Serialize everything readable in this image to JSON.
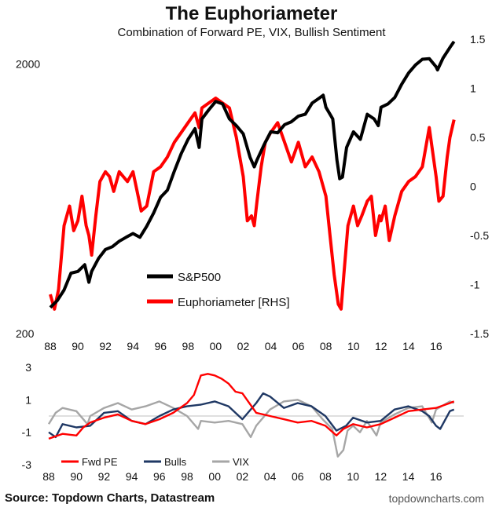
{
  "title": "The Euphoriameter",
  "subtitle": "Combination of Forward PE, VIX, Bullish Sentiment",
  "source": "Source: Topdown Charts, Datastream",
  "watermark": "topdowncharts.com",
  "chart_data": [
    {
      "type": "line",
      "title": "The Euphoriameter",
      "xlim": [
        1988,
        2018
      ],
      "xticks": [
        1988,
        1990,
        1992,
        1994,
        1996,
        1998,
        2000,
        2002,
        2004,
        2006,
        2008,
        2010,
        2012,
        2014,
        2016
      ],
      "xtick_labels": [
        "88",
        "90",
        "92",
        "94",
        "96",
        "98",
        "00",
        "02",
        "04",
        "06",
        "08",
        "10",
        "12",
        "14",
        "16"
      ],
      "y_left": {
        "scale": "log",
        "lim": [
          200,
          2500
        ],
        "ticks": [
          200,
          2000
        ],
        "tick_labels": [
          "200",
          "2000"
        ]
      },
      "y_right": {
        "lim": [
          -1.5,
          1.5
        ],
        "ticks": [
          -1.5,
          -1,
          -0.5,
          0,
          0.5,
          1,
          1.5
        ],
        "tick_labels": [
          "-1.5",
          "-1",
          "-0.5",
          "0",
          "0.5",
          "1",
          "1.5"
        ]
      },
      "legend": [
        "S&P500",
        "Euphoriameter [RHS]"
      ],
      "series": [
        {
          "name": "S&P500",
          "axis": "left",
          "color": "#000000",
          "x": [
            1988,
            1988.5,
            1989,
            1989.5,
            1990,
            1990.5,
            1990.8,
            1991,
            1991.5,
            1992,
            1992.5,
            1993,
            1993.5,
            1994,
            1994.5,
            1995,
            1995.5,
            1996,
            1996.5,
            1997,
            1997.5,
            1998,
            1998.5,
            1998.8,
            1999,
            1999.5,
            2000,
            2000.5,
            2001,
            2001.5,
            2002,
            2002.5,
            2002.8,
            2003,
            2003.5,
            2004,
            2004.5,
            2005,
            2005.5,
            2006,
            2006.5,
            2007,
            2007.5,
            2007.8,
            2008,
            2008.5,
            2008.8,
            2009,
            2009.2,
            2009.5,
            2010,
            2010.5,
            2011,
            2011.5,
            2011.8,
            2012,
            2012.5,
            2013,
            2013.5,
            2014,
            2014.5,
            2015,
            2015.5,
            2016,
            2016.1,
            2016.5,
            2017,
            2017.3
          ],
          "values": [
            250,
            265,
            290,
            335,
            340,
            360,
            310,
            340,
            380,
            410,
            420,
            440,
            455,
            470,
            455,
            500,
            560,
            640,
            680,
            800,
            930,
            1050,
            1150,
            980,
            1250,
            1350,
            1450,
            1420,
            1250,
            1180,
            1100,
            900,
            830,
            880,
            1000,
            1120,
            1110,
            1190,
            1220,
            1280,
            1300,
            1430,
            1490,
            1530,
            1380,
            1250,
            880,
            750,
            760,
            980,
            1120,
            1050,
            1300,
            1250,
            1180,
            1380,
            1420,
            1500,
            1680,
            1850,
            1980,
            2080,
            2090,
            1950,
            1900,
            2100,
            2300,
            2420
          ]
        },
        {
          "name": "Euphoriameter [RHS]",
          "axis": "right",
          "color": "#ff0000",
          "x": [
            1988,
            1988.3,
            1988.6,
            1989,
            1989.4,
            1989.7,
            1990,
            1990.3,
            1990.6,
            1990.8,
            1991,
            1991.3,
            1991.6,
            1992,
            1992.3,
            1992.6,
            1993,
            1993.3,
            1993.6,
            1994,
            1994.3,
            1994.6,
            1995,
            1995.5,
            1996,
            1996.5,
            1997,
            1997.5,
            1998,
            1998.5,
            1998.8,
            1999,
            1999.5,
            2000,
            2000.5,
            2001,
            2001.5,
            2002,
            2002.3,
            2002.6,
            2002.8,
            2003,
            2003.3,
            2003.6,
            2004,
            2004.5,
            2005,
            2005.5,
            2006,
            2006.5,
            2007,
            2007.5,
            2008,
            2008.3,
            2008.6,
            2008.9,
            2009.1,
            2009.3,
            2009.6,
            2010,
            2010.3,
            2010.6,
            2011,
            2011.3,
            2011.6,
            2011.9,
            2012,
            2012.3,
            2012.6,
            2013,
            2013.5,
            2014,
            2014.5,
            2015,
            2015.5,
            2015.8,
            2016,
            2016.2,
            2016.5,
            2016.8,
            2017,
            2017.3
          ],
          "values": [
            -1.1,
            -1.25,
            -1.05,
            -0.4,
            -0.2,
            -0.45,
            -0.35,
            -0.1,
            -0.4,
            -0.5,
            -0.7,
            -0.3,
            0.05,
            0.15,
            0.1,
            -0.05,
            0.15,
            0.1,
            0.05,
            0.15,
            -0.05,
            -0.25,
            -0.2,
            0.15,
            0.2,
            0.3,
            0.45,
            0.55,
            0.65,
            0.75,
            0.6,
            0.8,
            0.85,
            0.9,
            0.85,
            0.8,
            0.5,
            0.1,
            -0.35,
            -0.3,
            -0.4,
            -0.15,
            0.2,
            0.45,
            0.55,
            0.65,
            0.45,
            0.25,
            0.45,
            0.2,
            0.3,
            0.15,
            -0.1,
            -0.5,
            -0.9,
            -1.2,
            -1.25,
            -0.9,
            -0.4,
            -0.2,
            -0.4,
            -0.3,
            -0.15,
            -0.1,
            -0.5,
            -0.3,
            -0.35,
            -0.2,
            -0.55,
            -0.3,
            -0.05,
            0.05,
            0.1,
            0.2,
            0.6,
            0.3,
            0.1,
            -0.15,
            -0.1,
            0.3,
            0.5,
            0.68
          ]
        }
      ]
    },
    {
      "type": "line",
      "title": "",
      "xlim": [
        1988,
        2018
      ],
      "xticks": [
        1988,
        1990,
        1992,
        1994,
        1996,
        1998,
        2000,
        2002,
        2004,
        2006,
        2008,
        2010,
        2012,
        2014,
        2016
      ],
      "xtick_labels": [
        "88",
        "90",
        "92",
        "94",
        "96",
        "98",
        "00",
        "02",
        "04",
        "06",
        "08",
        "10",
        "12",
        "14",
        "16"
      ],
      "ylim": [
        -3,
        3
      ],
      "yticks": [
        -3,
        -1,
        1,
        3
      ],
      "ytick_labels": [
        "-3",
        "-1",
        "1",
        "3"
      ],
      "legend": [
        "Fwd PE",
        "Bulls",
        "VIX"
      ],
      "series": [
        {
          "name": "Fwd PE",
          "color": "#ff0000",
          "x": [
            1988,
            1989,
            1990,
            1990.5,
            1991,
            1992,
            1993,
            1994,
            1995,
            1996,
            1997,
            1998,
            1998.5,
            1999,
            1999.5,
            2000,
            2000.5,
            2001,
            2001.5,
            2002,
            2002.5,
            2003,
            2004,
            2005,
            2006,
            2007,
            2008,
            2008.8,
            2009.3,
            2010,
            2011,
            2012,
            2013,
            2014,
            2015,
            2016,
            2017,
            2017.3
          ],
          "values": [
            -1.4,
            -1.1,
            -1.2,
            -0.7,
            -0.4,
            -0.1,
            0.1,
            -0.3,
            -0.5,
            -0.2,
            0.2,
            0.8,
            1.3,
            2.5,
            2.6,
            2.5,
            2.3,
            2.0,
            1.5,
            1.4,
            0.8,
            0.2,
            0.0,
            -0.2,
            -0.4,
            -0.3,
            -0.6,
            -1.2,
            -0.8,
            -0.5,
            -0.7,
            -0.5,
            -0.1,
            0.3,
            0.4,
            0.5,
            0.8,
            0.9
          ]
        },
        {
          "name": "Bulls",
          "color": "#1f3864",
          "x": [
            1988,
            1988.5,
            1989,
            1990,
            1991,
            1991.5,
            1992,
            1993,
            1994,
            1995,
            1996,
            1997,
            1998,
            1999,
            2000,
            2001,
            2002,
            2003,
            2003.5,
            2004,
            2005,
            2006,
            2007,
            2008,
            2008.8,
            2009.5,
            2010,
            2011,
            2012,
            2013,
            2014,
            2015,
            2015.5,
            2016,
            2016.3,
            2017,
            2017.3
          ],
          "values": [
            -1.0,
            -1.3,
            -0.5,
            -0.7,
            -0.6,
            -0.2,
            0.2,
            0.3,
            -0.3,
            -0.5,
            0.0,
            0.4,
            0.6,
            0.7,
            0.9,
            0.6,
            -0.2,
            0.8,
            1.4,
            1.2,
            0.5,
            0.8,
            0.6,
            0.0,
            -0.9,
            -0.6,
            -0.1,
            -0.4,
            -0.3,
            0.4,
            0.6,
            0.3,
            0.0,
            -0.6,
            -0.8,
            0.3,
            0.4
          ]
        },
        {
          "name": "VIX",
          "color": "#a6a6a6",
          "x": [
            1988,
            1988.5,
            1989,
            1990,
            1990.8,
            1991,
            1992,
            1993,
            1994,
            1995,
            1996,
            1997,
            1998,
            1998.8,
            1999,
            2000,
            2001,
            2002,
            2002.6,
            2003,
            2004,
            2005,
            2006,
            2007,
            2007.8,
            2008.5,
            2008.9,
            2009.3,
            2009.6,
            2010,
            2010.5,
            2011,
            2011.7,
            2012,
            2013,
            2014,
            2015,
            2015.7,
            2016,
            2017,
            2017.3
          ],
          "values": [
            -0.5,
            0.2,
            0.5,
            0.3,
            -0.5,
            0.0,
            0.5,
            0.8,
            0.4,
            0.6,
            0.9,
            0.5,
            0.0,
            -0.8,
            -0.3,
            -0.4,
            -0.3,
            -0.5,
            -1.3,
            -0.6,
            0.4,
            0.9,
            1.0,
            0.6,
            -0.2,
            -0.8,
            -2.5,
            -2.1,
            -0.9,
            -0.6,
            -1.0,
            -0.3,
            -1.2,
            -0.4,
            0.1,
            0.5,
            0.6,
            -0.4,
            0.4,
            0.9,
            0.8
          ]
        }
      ]
    }
  ]
}
